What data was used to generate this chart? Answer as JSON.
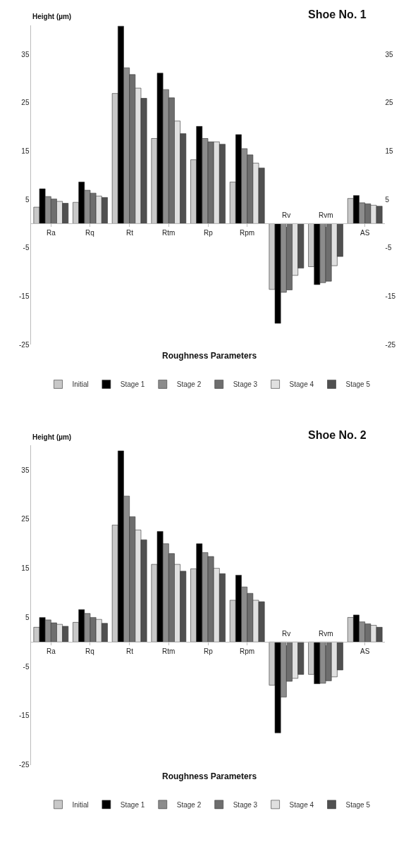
{
  "chart_data": [
    {
      "type": "bar",
      "title": "Shoe No. 1",
      "xlabel": "Roughness Parameters",
      "ylabel": "Height (µm)",
      "legend": "bottom",
      "categories": [
        "Ra",
        "Rq",
        "Rt",
        "Rtm",
        "Rp",
        "Rpm",
        "Rv",
        "Rvm",
        "AS"
      ],
      "series": [
        {
          "name": "Initial",
          "color": "#c8c8c8",
          "values": [
            3.4,
            4.4,
            26.9,
            17.6,
            13.2,
            8.6,
            -13.6,
            -8.9,
            5.2
          ]
        },
        {
          "name": "Stage 1",
          "color": "#000000",
          "values": [
            7.2,
            8.6,
            40.8,
            31.1,
            20.1,
            18.4,
            -20.6,
            -12.6,
            5.8
          ]
        },
        {
          "name": "Stage 2",
          "color": "#8c8c8c",
          "values": [
            5.6,
            6.9,
            32.2,
            27.7,
            17.6,
            15.5,
            -14.2,
            -12.2,
            4.3
          ]
        },
        {
          "name": "Stage 3",
          "color": "#6e6e6e",
          "values": [
            5.1,
            6.3,
            30.8,
            26.0,
            16.9,
            14.2,
            -13.7,
            -11.9,
            4.1
          ]
        },
        {
          "name": "Stage 4",
          "color": "#e0e0e0",
          "values": [
            4.6,
            5.7,
            28.0,
            21.2,
            16.9,
            12.5,
            -10.7,
            -8.7,
            3.8
          ]
        },
        {
          "name": "Stage 5",
          "color": "#505050",
          "values": [
            4.2,
            5.4,
            25.9,
            18.6,
            16.4,
            11.5,
            -9.2,
            -6.8,
            3.6
          ]
        }
      ],
      "ylim": [
        -25,
        41
      ],
      "yticks": [
        -25,
        -15,
        -5,
        5,
        15,
        25,
        35
      ],
      "y2lim": [
        -25,
        41
      ],
      "y2ticks": [
        -25,
        -15,
        -5,
        5,
        15,
        25,
        35
      ]
    },
    {
      "type": "bar",
      "title": "Shoe No. 2",
      "xlabel": "Roughness Parameters",
      "ylabel": "Height (µm)",
      "legend": "bottom",
      "categories": [
        "Ra",
        "Rq",
        "Rt",
        "Rtm",
        "Rp",
        "Rpm",
        "Rv",
        "Rvm",
        "AS"
      ],
      "series": [
        {
          "name": "Initial",
          "color": "#c8c8c8",
          "values": [
            3.0,
            4.0,
            23.8,
            15.8,
            14.9,
            8.5,
            -8.8,
            -6.6,
            5.0
          ]
        },
        {
          "name": "Stage 1",
          "color": "#000000",
          "values": [
            5.0,
            6.6,
            38.9,
            22.5,
            20.0,
            13.6,
            -18.5,
            -8.5,
            5.5
          ]
        },
        {
          "name": "Stage 2",
          "color": "#8c8c8c",
          "values": [
            4.5,
            5.8,
            29.7,
            20.0,
            18.2,
            11.2,
            -11.2,
            -8.4,
            4.1
          ]
        },
        {
          "name": "Stage 3",
          "color": "#6e6e6e",
          "values": [
            3.9,
            5.0,
            25.5,
            18.0,
            17.4,
            9.9,
            -8.0,
            -7.9,
            3.7
          ]
        },
        {
          "name": "Stage 4",
          "color": "#e0e0e0",
          "values": [
            3.6,
            4.6,
            22.8,
            15.8,
            15.0,
            8.5,
            -7.4,
            -7.1,
            3.4
          ]
        },
        {
          "name": "Stage 5",
          "color": "#505050",
          "values": [
            3.2,
            3.8,
            20.8,
            14.4,
            13.9,
            8.2,
            -6.6,
            -5.7,
            3.0
          ]
        }
      ],
      "ylim": [
        -25,
        40
      ],
      "yticks": [
        -25,
        -15,
        -5,
        5,
        15,
        25,
        35
      ]
    }
  ]
}
